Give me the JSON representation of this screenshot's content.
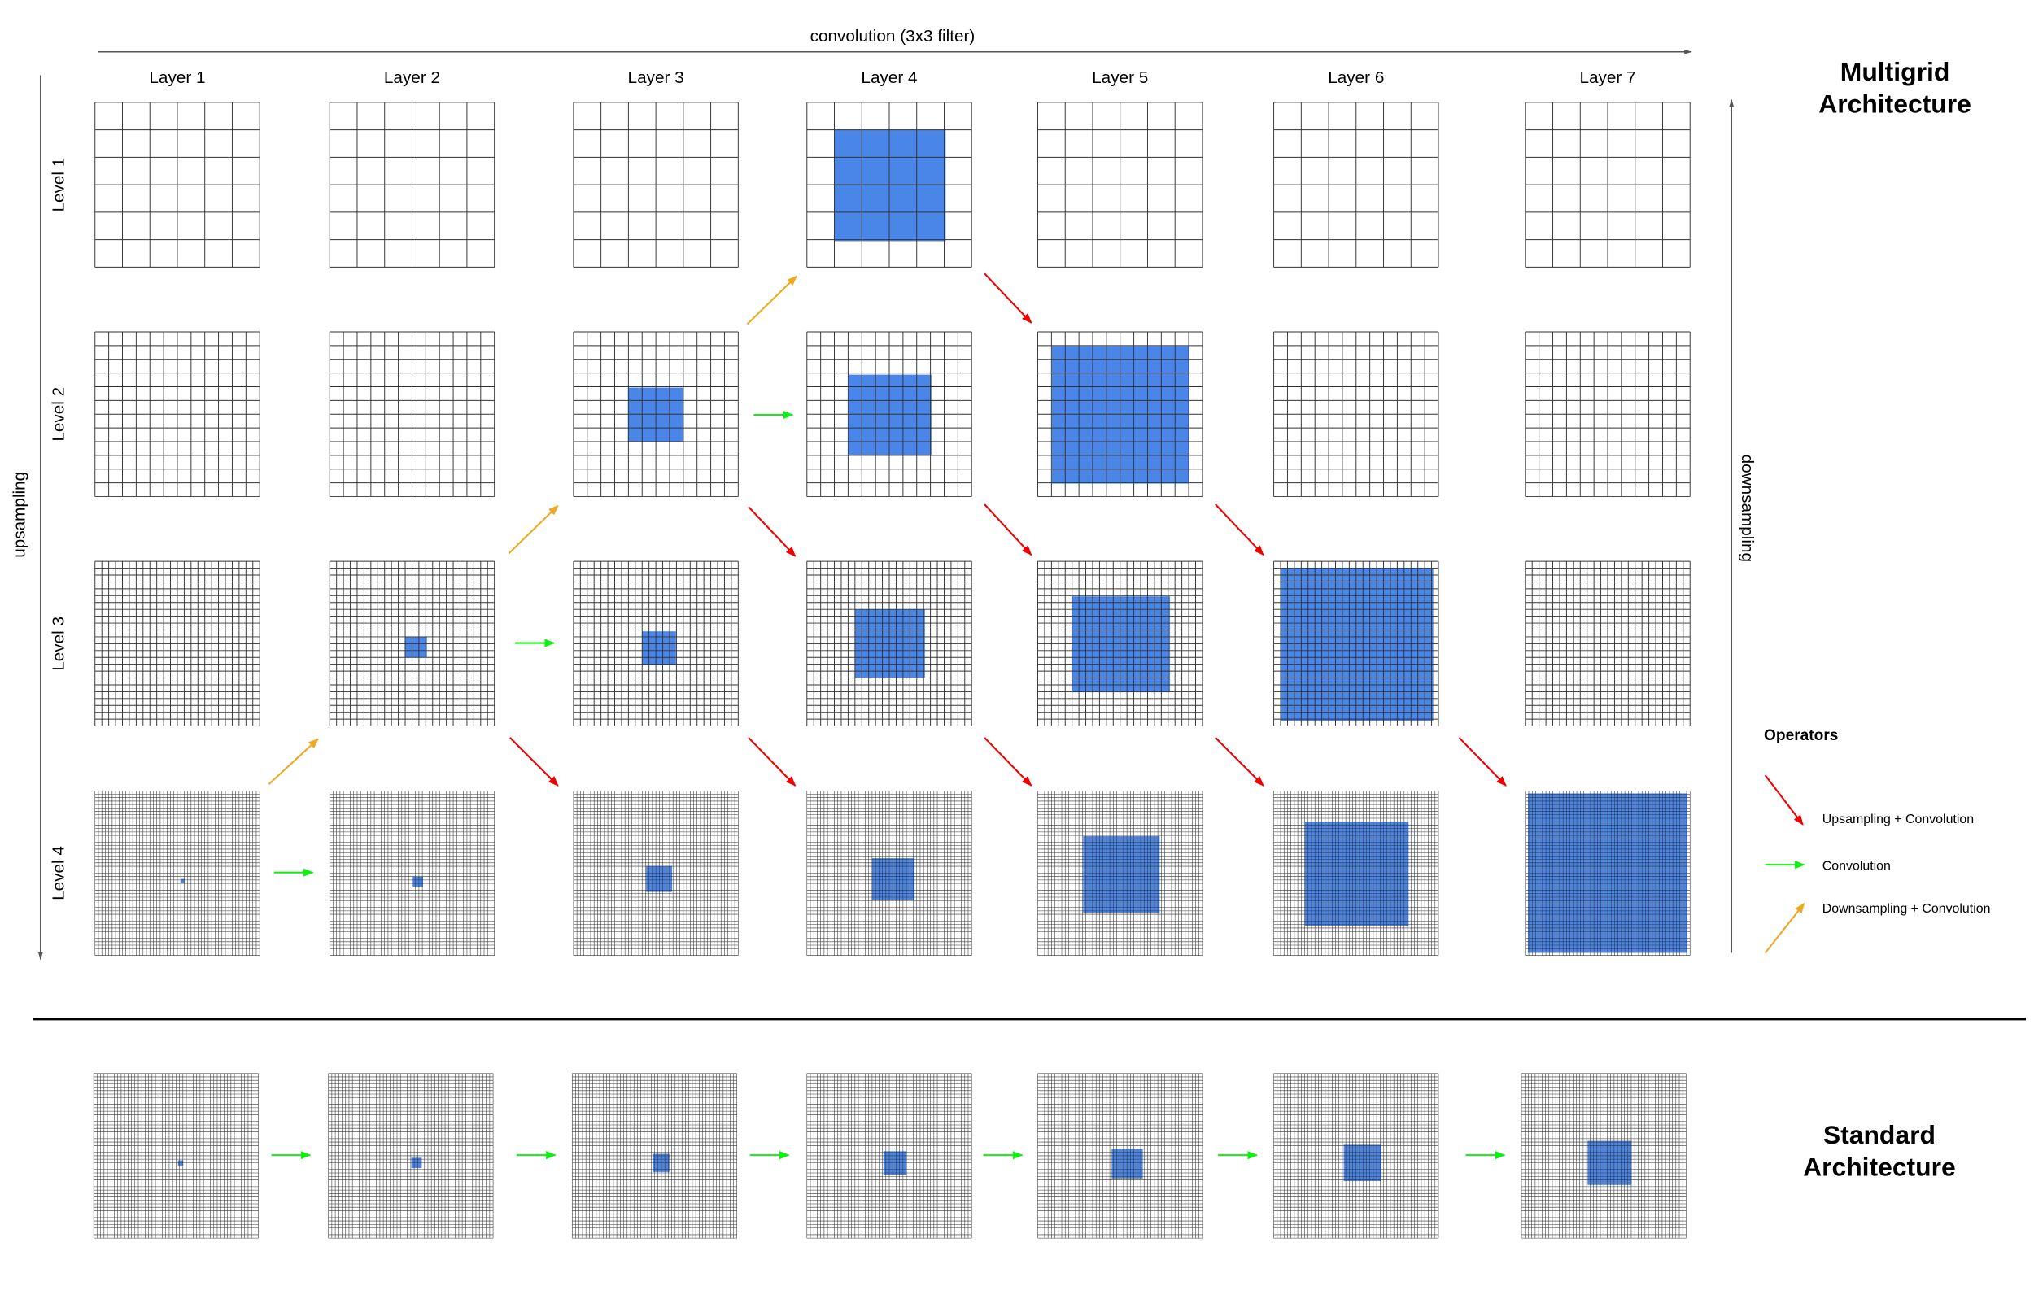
{
  "top_axis_label": "convolution (3x3 filter)",
  "layers": [
    "Layer 1",
    "Layer 2",
    "Layer 3",
    "Layer 4",
    "Layer 5",
    "Layer 6",
    "Layer 7"
  ],
  "levels": [
    "Level 1",
    "Level 2",
    "Level 3",
    "Level 4"
  ],
  "left_axis_label": "upsampling",
  "right_axis_label": "downsampling",
  "multigrid_title": [
    "Multigrid",
    "Architecture"
  ],
  "legend": {
    "title": "Operators",
    "items": [
      "Upsampling + Convolution",
      "Convolution",
      "Downsampling + Convolution"
    ]
  },
  "standard_title": [
    "Standard",
    "Architecture"
  ]
}
